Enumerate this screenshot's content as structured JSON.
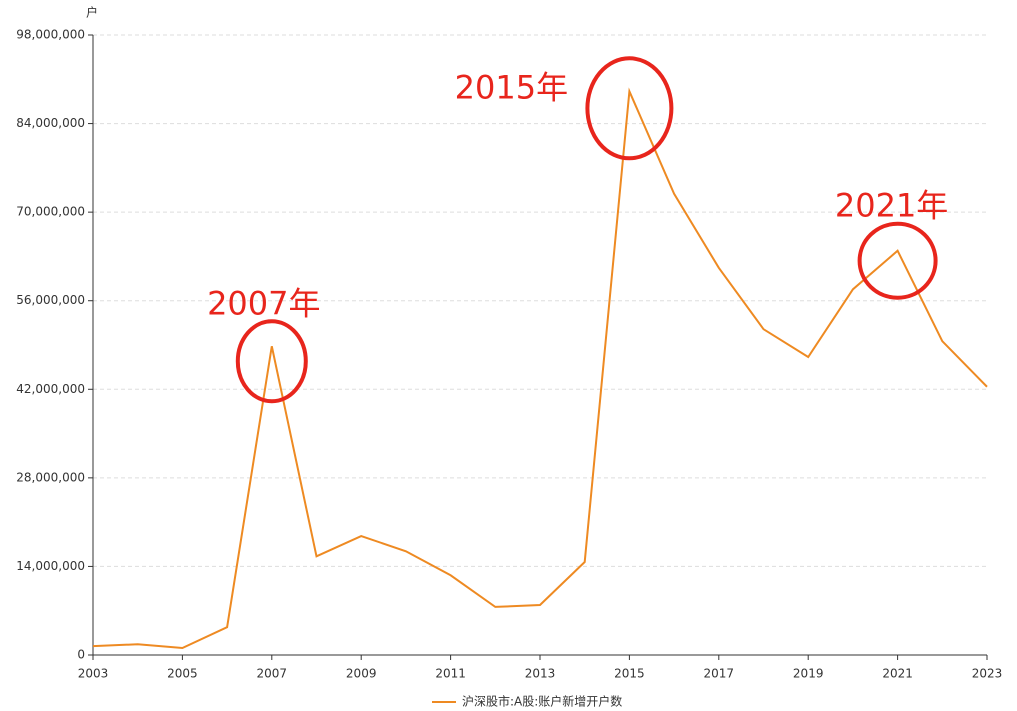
{
  "chart_data": {
    "type": "line",
    "y_label": "户",
    "x": [
      2003,
      2004,
      2005,
      2006,
      2007,
      2008,
      2009,
      2010,
      2011,
      2012,
      2013,
      2014,
      2015,
      2016,
      2017,
      2018,
      2019,
      2020,
      2021,
      2022,
      2023
    ],
    "series": [
      {
        "name": "沪深股市:A股:账户新增开户数",
        "color": "#ee8a22",
        "values": [
          1400000,
          1700000,
          1100000,
          4400000,
          48800000,
          15600000,
          18800000,
          16400000,
          12600000,
          7600000,
          7900000,
          14700000,
          89100000,
          72900000,
          61200000,
          51500000,
          47100000,
          57800000,
          63900000,
          49600000,
          42400000
        ]
      }
    ],
    "xlim": [
      2003,
      2023
    ],
    "xticks": [
      2003,
      2005,
      2007,
      2009,
      2011,
      2013,
      2015,
      2017,
      2019,
      2021,
      2023
    ],
    "ylim": [
      0,
      98000000
    ],
    "yticks": [
      0,
      {
        "value": 14000000,
        "label": "14,000,000"
      },
      {
        "value": 28000000,
        "label": "28,000,000"
      },
      {
        "value": 42000000,
        "label": "42,000,000"
      },
      {
        "value": 56000000,
        "label": "56,000,000"
      },
      {
        "value": 70000000,
        "label": "70,000,000"
      },
      {
        "value": 84000000,
        "label": "84,000,000"
      },
      {
        "value": 98000000,
        "label": "98,000,000"
      }
    ],
    "grid": true,
    "legend": "bottom",
    "annotations": [
      {
        "text": "2007年",
        "x": 2007
      },
      {
        "text": "2015年",
        "x": 2015
      },
      {
        "text": "2021年",
        "x": 2021
      }
    ],
    "annotation_color": "#e8251c"
  }
}
